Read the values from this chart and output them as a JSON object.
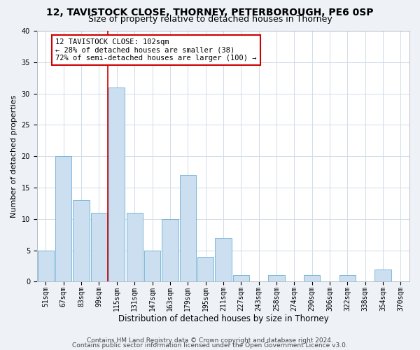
{
  "title1": "12, TAVISTOCK CLOSE, THORNEY, PETERBOROUGH, PE6 0SP",
  "title2": "Size of property relative to detached houses in Thorney",
  "xlabel": "Distribution of detached houses by size in Thorney",
  "ylabel": "Number of detached properties",
  "categories": [
    "51sqm",
    "67sqm",
    "83sqm",
    "99sqm",
    "115sqm",
    "131sqm",
    "147sqm",
    "163sqm",
    "179sqm",
    "195sqm",
    "211sqm",
    "227sqm",
    "243sqm",
    "258sqm",
    "274sqm",
    "290sqm",
    "306sqm",
    "322sqm",
    "338sqm",
    "354sqm",
    "370sqm"
  ],
  "values": [
    5,
    20,
    13,
    11,
    31,
    11,
    5,
    10,
    17,
    4,
    7,
    1,
    0,
    1,
    0,
    1,
    0,
    1,
    0,
    2,
    0
  ],
  "bar_color": "#ccdff0",
  "bar_edge_color": "#6aafd6",
  "grid_color": "#d0dce8",
  "vline_x": 3.5,
  "vline_color": "#cc0000",
  "annotation_text": "12 TAVISTOCK CLOSE: 102sqm\n← 28% of detached houses are smaller (38)\n72% of semi-detached houses are larger (100) →",
  "annotation_box_color": "#ffffff",
  "annotation_box_edge": "#cc0000",
  "ylim": [
    0,
    40
  ],
  "yticks": [
    0,
    5,
    10,
    15,
    20,
    25,
    30,
    35,
    40
  ],
  "footer1": "Contains HM Land Registry data © Crown copyright and database right 2024.",
  "footer2": "Contains public sector information licensed under the Open Government Licence v3.0.",
  "bg_color": "#eef2f7",
  "plot_bg_color": "#ffffff",
  "title1_fontsize": 10,
  "title2_fontsize": 9,
  "xlabel_fontsize": 8.5,
  "ylabel_fontsize": 8,
  "tick_fontsize": 7,
  "footer_fontsize": 6.5,
  "ann_fontsize": 7.5
}
